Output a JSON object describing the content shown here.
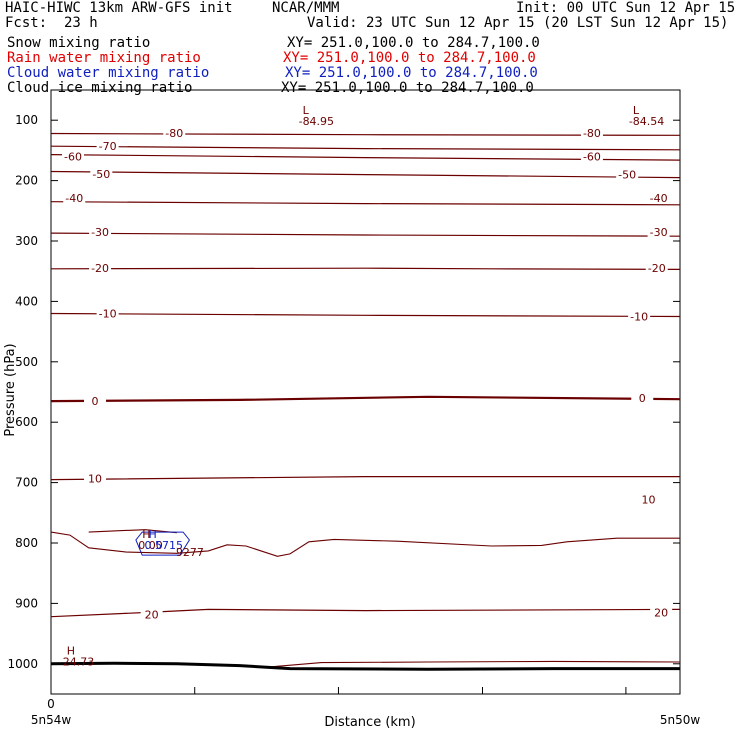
{
  "header": {
    "title": "HAIC-HIWC 13km ARW-GFS init",
    "org": "NCAR/MMM",
    "init": "Init: 00 UTC Sun 12 Apr 15",
    "fcst_label": "Fcst:",
    "fcst_value": "23 h",
    "valid": "Valid: 23 UTC Sun 12 Apr 15 (20 LST Sun 12 Apr 15)"
  },
  "fields": [
    {
      "name": "Snow mixing ratio",
      "xy": "XY= 251.0,100.0 to 284.7,100.0",
      "color": "#000000"
    },
    {
      "name": "Rain water mixing ratio",
      "xy": "XY= 251.0,100.0 to 284.7,100.0",
      "color": "#e00000"
    },
    {
      "name": "Cloud water mixing ratio",
      "xy": "XY= 251.0,100.0 to 284.7,100.0",
      "color": "#1020c0"
    },
    {
      "name": "Cloud ice mixing ratio",
      "xy": "XY= 251.0,100.0 to 284.7,100.0",
      "color": "#000000"
    }
  ],
  "colors": {
    "isotherm": "#6b0000",
    "terrain": "#000000",
    "cloud_water": "#1020c0"
  },
  "chart_data": {
    "type": "line",
    "title": "",
    "xlabel": "Distance (km)",
    "ylabel": "Pressure (hPa)",
    "xlim": [
      0,
      1
    ],
    "ylim": [
      1050,
      50
    ],
    "y_ticks": [
      100,
      200,
      300,
      400,
      500,
      600,
      700,
      800,
      900,
      1000
    ],
    "y_tick_labels": [
      "100",
      "200",
      "300",
      "400",
      "500",
      "600",
      "700",
      "800",
      "900",
      "1000"
    ],
    "x_ticks": [
      0,
      0.2285,
      0.457,
      0.686,
      0.914
    ],
    "x_tick_labels": [
      {
        "x": 0,
        "text": "0"
      },
      {
        "x": 0,
        "text": "5n54w"
      },
      {
        "x": 1,
        "text": "5n50w"
      }
    ],
    "isotherms": [
      {
        "label": "-80",
        "points": [
          [
            0,
            122
          ],
          [
            0.5,
            124
          ],
          [
            1,
            125
          ]
        ],
        "labels": [
          [
            0.196,
            121
          ],
          [
            0.86,
            121
          ]
        ]
      },
      {
        "label": "-70",
        "points": [
          [
            0,
            143
          ],
          [
            0.5,
            147
          ],
          [
            1,
            149
          ]
        ],
        "labels": [
          [
            0.09,
            143
          ]
        ]
      },
      {
        "label": "-60",
        "points": [
          [
            0,
            157
          ],
          [
            0.5,
            162
          ],
          [
            1,
            166
          ]
        ],
        "labels": [
          [
            0.035,
            160
          ],
          [
            0.86,
            160
          ]
        ]
      },
      {
        "label": "-50",
        "points": [
          [
            0,
            185
          ],
          [
            0.5,
            190
          ],
          [
            1,
            195
          ]
        ],
        "labels": [
          [
            0.08,
            189
          ],
          [
            0.916,
            190
          ]
        ]
      },
      {
        "label": "-40",
        "points": [
          [
            0,
            235
          ],
          [
            0.5,
            238
          ],
          [
            1,
            240
          ]
        ],
        "labels": [
          [
            0.037,
            229
          ],
          [
            0.966,
            229
          ]
        ]
      },
      {
        "label": "-30",
        "points": [
          [
            0,
            287
          ],
          [
            0.5,
            290
          ],
          [
            1,
            292
          ]
        ],
        "labels": [
          [
            0.078,
            285
          ],
          [
            0.966,
            285
          ]
        ]
      },
      {
        "label": "-20",
        "points": [
          [
            0,
            346
          ],
          [
            0.5,
            345
          ],
          [
            0.7,
            346
          ],
          [
            1,
            347
          ]
        ],
        "labels": [
          [
            0.078,
            345
          ],
          [
            0.963,
            345
          ]
        ]
      },
      {
        "label": "-10",
        "points": [
          [
            0,
            420
          ],
          [
            0.5,
            423
          ],
          [
            1,
            425
          ]
        ],
        "labels": [
          [
            0.09,
            420
          ],
          [
            0.935,
            425
          ]
        ]
      },
      {
        "label": "0",
        "points": [
          [
            0,
            565
          ],
          [
            0.3,
            563
          ],
          [
            0.6,
            558
          ],
          [
            1,
            562
          ]
        ],
        "labels": [
          [
            0.07,
            565
          ],
          [
            0.94,
            560
          ]
        ],
        "bold": true
      },
      {
        "label": "10",
        "points": [
          [
            0,
            695
          ],
          [
            0.5,
            690
          ],
          [
            1,
            690
          ]
        ],
        "labels": [
          [
            0.07,
            693
          ],
          [
            0.95,
            728
          ]
        ]
      },
      {
        "label": "20",
        "points": [
          [
            0,
            922
          ],
          [
            0.15,
            915
          ],
          [
            0.25,
            910
          ],
          [
            0.5,
            912
          ],
          [
            1,
            910
          ]
        ],
        "labels": [
          [
            0.16,
            918
          ],
          [
            0.97,
            915
          ]
        ]
      }
    ],
    "contours": [
      {
        "points": [
          [
            0,
            782
          ],
          [
            0.03,
            787
          ],
          [
            0.06,
            808
          ],
          [
            0.12,
            815
          ],
          [
            0.2,
            817
          ],
          [
            0.25,
            813
          ],
          [
            0.28,
            803
          ],
          [
            0.31,
            805
          ],
          [
            0.36,
            822
          ],
          [
            0.38,
            818
          ],
          [
            0.41,
            798
          ],
          [
            0.45,
            794
          ],
          [
            0.55,
            797
          ],
          [
            0.7,
            805
          ],
          [
            0.78,
            804
          ],
          [
            0.82,
            798
          ],
          [
            0.9,
            792
          ],
          [
            1,
            792
          ]
        ]
      },
      {
        "points": [
          [
            0.06,
            782
          ],
          [
            0.1,
            780
          ],
          [
            0.15,
            778
          ],
          [
            0.2,
            783
          ]
        ]
      },
      {
        "points": [
          [
            0.35,
            1005
          ],
          [
            0.43,
            998
          ],
          [
            0.6,
            997
          ],
          [
            0.8,
            996
          ],
          [
            1,
            997
          ]
        ]
      }
    ],
    "terrain": [
      [
        0,
        1000
      ],
      [
        0.1,
        999
      ],
      [
        0.2,
        1000
      ],
      [
        0.3,
        1003
      ],
      [
        0.38,
        1008
      ],
      [
        0.6,
        1009
      ],
      [
        0.8,
        1008
      ],
      [
        1,
        1008
      ]
    ],
    "cloud_water_polygon": [
      [
        0.145,
        782
      ],
      [
        0.21,
        782
      ],
      [
        0.22,
        795
      ],
      [
        0.205,
        820
      ],
      [
        0.145,
        820
      ],
      [
        0.135,
        795
      ]
    ],
    "extrema": [
      {
        "symbol": "L",
        "value": "-84.95",
        "x": 0.4,
        "p": 90
      },
      {
        "symbol": "L",
        "value": "-84.54",
        "x": 0.925,
        "p": 90
      },
      {
        "symbol": "H",
        "value": "24.73",
        "x": 0.025,
        "p": 985
      },
      {
        "symbol": "H",
        "value": "0.00",
        "x": 0.145,
        "p": 792,
        "color": "#6b0000"
      },
      {
        "symbol": "H",
        "value": "0.5715",
        "x": 0.155,
        "p": 792,
        "color": "#1020c0"
      },
      {
        "symbol": "",
        "value": "9277",
        "x": 0.205,
        "p": 803,
        "color": "#6b0000"
      }
    ]
  }
}
